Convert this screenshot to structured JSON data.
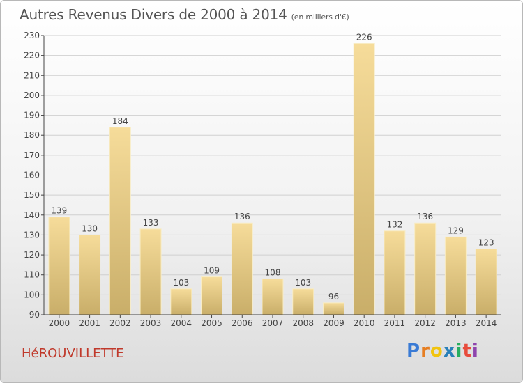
{
  "chart_data": {
    "type": "bar",
    "title": "Autres Revenus Divers de 2000 à 2014",
    "subtitle": "(en milliers d'€)",
    "categories": [
      "2000",
      "2001",
      "2002",
      "2003",
      "2004",
      "2005",
      "2006",
      "2007",
      "2008",
      "2009",
      "2010",
      "2011",
      "2012",
      "2013",
      "2014"
    ],
    "values": [
      139,
      130,
      184,
      133,
      103,
      109,
      136,
      108,
      103,
      96,
      226,
      132,
      136,
      129,
      123
    ],
    "ylim": [
      90,
      230
    ],
    "yticks": [
      90,
      100,
      110,
      120,
      130,
      140,
      150,
      160,
      170,
      180,
      190,
      200,
      210,
      220,
      230
    ],
    "grid": true,
    "legend": "none",
    "bar_color_top": "#f6dc9a",
    "bar_color_bottom": "#c9ae69"
  },
  "footer": {
    "town": "HéROUVILLETTE",
    "brand_letters": [
      "P",
      "r",
      "o",
      "x",
      "i",
      "t",
      "i"
    ]
  },
  "colors": {
    "town": "#c0392b",
    "brand": [
      "#3a7bd5",
      "#e67e22",
      "#f1c40f",
      "#2980b9",
      "#27ae60",
      "#e74c3c",
      "#8e44ad"
    ]
  }
}
